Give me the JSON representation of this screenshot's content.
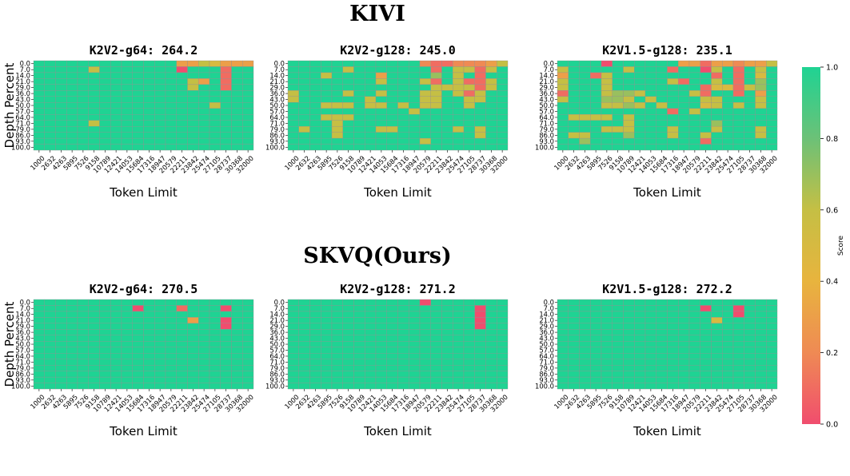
{
  "chart_data": {
    "type": "heatmap",
    "section_titles": [
      "KIVI",
      "SKVQ(Ours)"
    ],
    "xlabel": "Token Limit",
    "ylabel": "Depth Percent",
    "x_ticks": [
      "1000",
      "2632",
      "4263",
      "5895",
      "7526",
      "9158",
      "10789",
      "12421",
      "14053",
      "15684",
      "17316",
      "18947",
      "20579",
      "22211",
      "23842",
      "25474",
      "27105",
      "28737",
      "30368",
      "32000"
    ],
    "y_ticks": [
      "0.0",
      "7.0",
      "14.0",
      "21.0",
      "29.0",
      "36.0",
      "43.0",
      "50.0",
      "57.0",
      "64.0",
      "71.0",
      "79.0",
      "86.0",
      "93.0",
      "100.0"
    ],
    "colorbar": {
      "label": "Score",
      "range": [
        0.0,
        1.0
      ],
      "ticks": [
        "0.0",
        "0.2",
        "0.4",
        "0.6",
        "0.8",
        "1.0"
      ],
      "colors": [
        "#f04d6e",
        "#ef8a54",
        "#e8b43e",
        "#c5bf44",
        "#6cc177",
        "#1fd393"
      ]
    },
    "panels": [
      {
        "section": "KIVI",
        "title": "K2V2-g64: 264.2",
        "cells": [
          [
            0,
            13,
            0.3
          ],
          [
            0,
            14,
            0.3
          ],
          [
            0,
            15,
            0.6
          ],
          [
            0,
            16,
            0.5
          ],
          [
            0,
            17,
            0.3
          ],
          [
            0,
            18,
            0.3
          ],
          [
            0,
            19,
            0.3
          ],
          [
            1,
            5,
            0.6
          ],
          [
            1,
            13,
            0.0
          ],
          [
            1,
            17,
            0.1
          ],
          [
            2,
            17,
            0.1
          ],
          [
            3,
            14,
            0.6
          ],
          [
            3,
            15,
            0.3
          ],
          [
            3,
            17,
            0.1
          ],
          [
            4,
            14,
            0.6
          ],
          [
            4,
            17,
            0.1
          ],
          [
            7,
            16,
            0.6
          ],
          [
            10,
            5,
            0.6
          ]
        ]
      },
      {
        "section": "KIVI",
        "title": "K2V2-g128: 245.0",
        "cells": [
          [
            0,
            12,
            0.2
          ],
          [
            0,
            13,
            0.1
          ],
          [
            0,
            14,
            0.1
          ],
          [
            0,
            15,
            0.2
          ],
          [
            0,
            16,
            0.2
          ],
          [
            0,
            17,
            0.2
          ],
          [
            0,
            18,
            0.3
          ],
          [
            0,
            19,
            0.6
          ],
          [
            1,
            5,
            0.6
          ],
          [
            1,
            13,
            0.1
          ],
          [
            1,
            15,
            0.6
          ],
          [
            1,
            16,
            0.6
          ],
          [
            1,
            17,
            0.1
          ],
          [
            1,
            18,
            0.6
          ],
          [
            2,
            3,
            0.6
          ],
          [
            2,
            8,
            0.3
          ],
          [
            2,
            13,
            0.7
          ],
          [
            2,
            15,
            0.6
          ],
          [
            2,
            17,
            0.1
          ],
          [
            3,
            8,
            0.6
          ],
          [
            3,
            12,
            0.6
          ],
          [
            3,
            13,
            0.1
          ],
          [
            3,
            15,
            0.6
          ],
          [
            3,
            16,
            0.1
          ],
          [
            3,
            17,
            0.1
          ],
          [
            3,
            18,
            0.6
          ],
          [
            4,
            13,
            0.6
          ],
          [
            4,
            14,
            0.6
          ],
          [
            4,
            15,
            0.6
          ],
          [
            4,
            16,
            0.6
          ],
          [
            4,
            17,
            0.1
          ],
          [
            4,
            18,
            0.6
          ],
          [
            5,
            0,
            0.6
          ],
          [
            5,
            5,
            0.6
          ],
          [
            5,
            8,
            0.6
          ],
          [
            5,
            12,
            0.6
          ],
          [
            5,
            13,
            0.6
          ],
          [
            5,
            15,
            0.6
          ],
          [
            5,
            16,
            0.1
          ],
          [
            5,
            17,
            0.6
          ],
          [
            6,
            0,
            0.6
          ],
          [
            6,
            7,
            0.6
          ],
          [
            6,
            12,
            0.6
          ],
          [
            6,
            13,
            0.6
          ],
          [
            6,
            16,
            0.6
          ],
          [
            6,
            17,
            0.6
          ],
          [
            7,
            3,
            0.6
          ],
          [
            7,
            4,
            0.6
          ],
          [
            7,
            5,
            0.6
          ],
          [
            7,
            7,
            0.6
          ],
          [
            7,
            8,
            0.6
          ],
          [
            7,
            10,
            0.6
          ],
          [
            7,
            12,
            0.6
          ],
          [
            7,
            13,
            0.6
          ],
          [
            7,
            16,
            0.6
          ],
          [
            8,
            11,
            0.6
          ],
          [
            9,
            3,
            0.6
          ],
          [
            9,
            4,
            0.6
          ],
          [
            9,
            5,
            0.6
          ],
          [
            10,
            4,
            0.6
          ],
          [
            11,
            1,
            0.6
          ],
          [
            11,
            4,
            0.6
          ],
          [
            11,
            8,
            0.6
          ],
          [
            11,
            9,
            0.6
          ],
          [
            11,
            15,
            0.6
          ],
          [
            11,
            17,
            0.6
          ],
          [
            12,
            4,
            0.6
          ],
          [
            12,
            17,
            0.6
          ],
          [
            13,
            12,
            0.6
          ]
        ]
      },
      {
        "section": "KIVI",
        "title": "K2V1.5-g128: 235.1",
        "cells": [
          [
            0,
            4,
            0.0
          ],
          [
            0,
            11,
            0.3
          ],
          [
            0,
            12,
            0.3
          ],
          [
            0,
            13,
            0.1
          ],
          [
            0,
            14,
            0.3
          ],
          [
            0,
            15,
            0.3
          ],
          [
            0,
            16,
            0.2
          ],
          [
            0,
            17,
            0.3
          ],
          [
            0,
            18,
            0.3
          ],
          [
            0,
            19,
            0.6
          ],
          [
            1,
            0,
            0.6
          ],
          [
            1,
            6,
            0.6
          ],
          [
            1,
            10,
            0.1
          ],
          [
            1,
            13,
            0.0
          ],
          [
            1,
            14,
            0.6
          ],
          [
            1,
            16,
            0.1
          ],
          [
            1,
            18,
            0.6
          ],
          [
            2,
            0,
            0.3
          ],
          [
            2,
            3,
            0.1
          ],
          [
            2,
            4,
            0.6
          ],
          [
            2,
            14,
            0.1
          ],
          [
            2,
            16,
            0.1
          ],
          [
            2,
            18,
            0.5
          ],
          [
            3,
            0,
            0.6
          ],
          [
            3,
            4,
            0.6
          ],
          [
            3,
            10,
            0.6
          ],
          [
            3,
            11,
            0.1
          ],
          [
            3,
            14,
            0.6
          ],
          [
            3,
            16,
            0.1
          ],
          [
            3,
            18,
            0.7
          ],
          [
            4,
            0,
            0.6
          ],
          [
            4,
            4,
            0.6
          ],
          [
            4,
            13,
            0.1
          ],
          [
            4,
            14,
            0.5
          ],
          [
            4,
            15,
            0.5
          ],
          [
            4,
            16,
            0.1
          ],
          [
            4,
            17,
            0.6
          ],
          [
            4,
            18,
            0.7
          ],
          [
            5,
            0,
            0.1
          ],
          [
            5,
            4,
            0.6
          ],
          [
            5,
            5,
            0.7
          ],
          [
            5,
            6,
            0.7
          ],
          [
            5,
            7,
            0.6
          ],
          [
            5,
            12,
            0.6
          ],
          [
            5,
            13,
            0.1
          ],
          [
            5,
            16,
            0.1
          ],
          [
            5,
            18,
            0.3
          ],
          [
            6,
            0,
            0.6
          ],
          [
            6,
            4,
            0.7
          ],
          [
            6,
            5,
            0.7
          ],
          [
            6,
            6,
            0.6
          ],
          [
            6,
            8,
            0.6
          ],
          [
            6,
            13,
            0.6
          ],
          [
            6,
            14,
            0.6
          ],
          [
            6,
            18,
            0.6
          ],
          [
            7,
            4,
            0.6
          ],
          [
            7,
            5,
            0.6
          ],
          [
            7,
            6,
            0.7
          ],
          [
            7,
            7,
            0.6
          ],
          [
            7,
            9,
            0.6
          ],
          [
            7,
            13,
            0.5
          ],
          [
            7,
            14,
            0.6
          ],
          [
            7,
            16,
            0.6
          ],
          [
            7,
            18,
            0.6
          ],
          [
            8,
            10,
            0.1
          ],
          [
            8,
            12,
            0.6
          ],
          [
            9,
            1,
            0.6
          ],
          [
            9,
            2,
            0.6
          ],
          [
            9,
            3,
            0.6
          ],
          [
            9,
            4,
            0.6
          ],
          [
            9,
            6,
            0.6
          ],
          [
            10,
            6,
            0.6
          ],
          [
            10,
            14,
            0.7
          ],
          [
            11,
            4,
            0.6
          ],
          [
            11,
            5,
            0.6
          ],
          [
            11,
            6,
            0.6
          ],
          [
            11,
            10,
            0.6
          ],
          [
            11,
            14,
            0.6
          ],
          [
            11,
            18,
            0.6
          ],
          [
            12,
            1,
            0.6
          ],
          [
            12,
            2,
            0.6
          ],
          [
            12,
            6,
            0.7
          ],
          [
            12,
            10,
            0.6
          ],
          [
            12,
            13,
            0.6
          ],
          [
            12,
            18,
            0.6
          ],
          [
            13,
            2,
            0.7
          ],
          [
            13,
            13,
            0.1
          ]
        ]
      },
      {
        "section": "SKVQ(Ours)",
        "title": "K2V2-g64: 270.5",
        "cells": [
          [
            1,
            9,
            0.0
          ],
          [
            1,
            13,
            0.1
          ],
          [
            1,
            17,
            0.0
          ],
          [
            3,
            14,
            0.3
          ],
          [
            3,
            17,
            0.0
          ],
          [
            4,
            17,
            0.0
          ]
        ]
      },
      {
        "section": "SKVQ(Ours)",
        "title": "K2V2-g128: 271.2",
        "cells": [
          [
            0,
            12,
            0.0
          ],
          [
            1,
            17,
            0.0
          ],
          [
            2,
            17,
            0.0
          ],
          [
            3,
            17,
            0.0
          ],
          [
            4,
            17,
            0.0
          ]
        ]
      },
      {
        "section": "SKVQ(Ours)",
        "title": "K2V1.5-g128: 272.2",
        "cells": [
          [
            1,
            13,
            0.0
          ],
          [
            1,
            16,
            0.0
          ],
          [
            2,
            16,
            0.0
          ],
          [
            3,
            14,
            0.5
          ]
        ]
      }
    ]
  }
}
